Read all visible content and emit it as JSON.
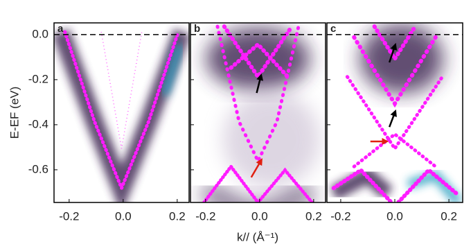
{
  "chart_data": [
    {
      "type": "heatmap",
      "label": "a",
      "ylabel": "E-EF (eV)",
      "xlim": [
        -0.256,
        0.244
      ],
      "xticks": [
        -0.2,
        {
          "value": 0,
          "label": "0.0"
        },
        0.2
      ],
      "ylim": [
        -0.745,
        0.052
      ],
      "yticks": [
        {
          "value": 0,
          "label": "0.0"
        },
        -0.2,
        -0.4,
        -0.6
      ]
    },
    {
      "type": "heatmap",
      "label": "b",
      "xlabel": "k// (Å⁻¹)",
      "xlim": [
        -0.256,
        0.244
      ],
      "xticks": [
        -0.2,
        {
          "value": 0,
          "label": "0.0"
        },
        0.2
      ],
      "ylim": [
        -0.745,
        0.052
      ],
      "yticks": [
        {
          "value": 0,
          "label": "0.0"
        },
        -0.2,
        -0.4,
        -0.6
      ]
    },
    {
      "type": "heatmap",
      "label": "c",
      "xlim": [
        -0.251,
        0.251
      ],
      "xticks": [
        -0.2,
        {
          "value": 0,
          "label": "0.0"
        },
        0.2
      ],
      "ylim": [
        -0.745,
        0.052
      ],
      "yticks": [
        {
          "value": 0,
          "label": "0.0"
        },
        -0.2,
        -0.4,
        -0.6
      ]
    }
  ]
}
